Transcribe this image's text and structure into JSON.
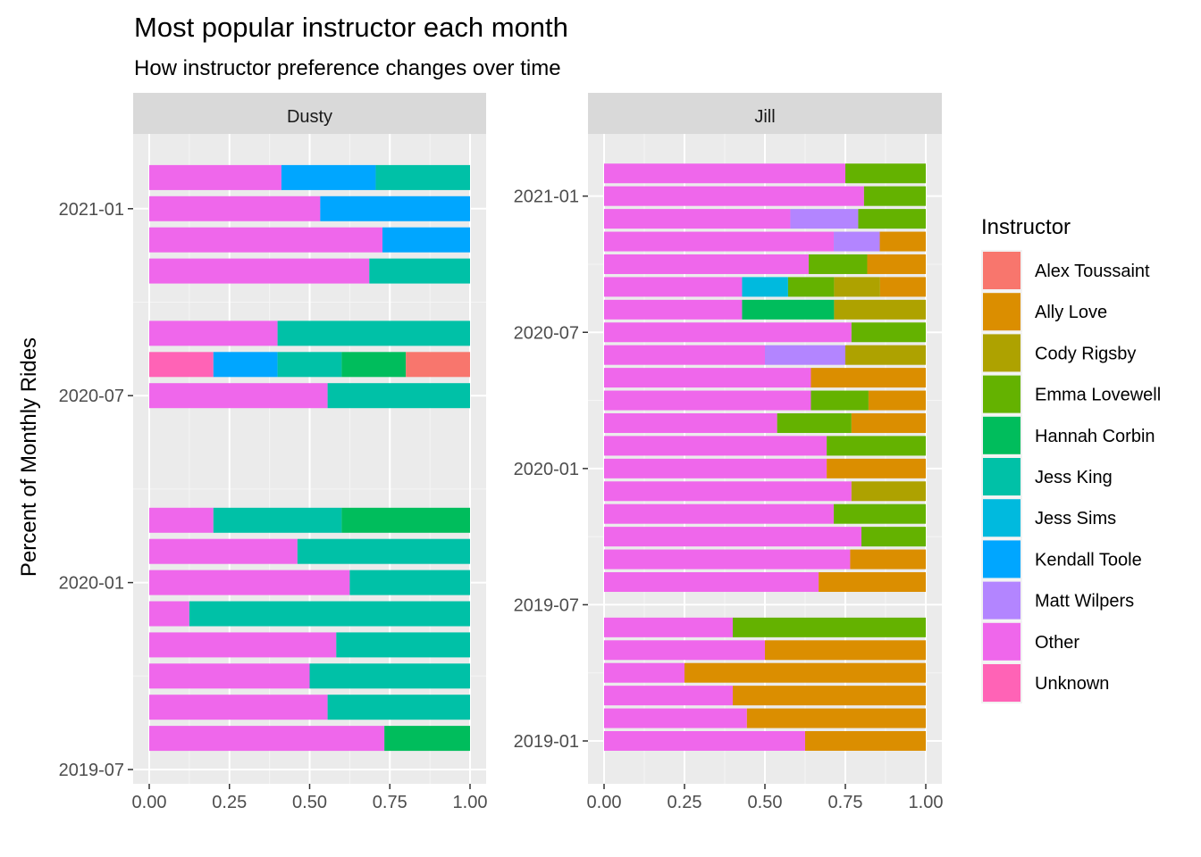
{
  "chart_data": {
    "type": "bar",
    "orientation": "horizontal",
    "stacked": true,
    "title": "Most popular instructor each month",
    "subtitle": "How instructor preference changes over time",
    "ylabel": "Percent of Monthly Rides",
    "xlim": [
      0,
      1
    ],
    "x_ticks": [
      "0.00",
      "0.25",
      "0.50",
      "0.75",
      "1.00"
    ],
    "legend": {
      "title": "Instructor",
      "position": "right",
      "entries": [
        {
          "name": "Alex Toussaint",
          "color": "#F8766D"
        },
        {
          "name": "Ally Love",
          "color": "#DB8E00"
        },
        {
          "name": "Cody Rigsby",
          "color": "#AEA200"
        },
        {
          "name": "Emma Lovewell",
          "color": "#64B200"
        },
        {
          "name": "Hannah Corbin",
          "color": "#00BD5C"
        },
        {
          "name": "Jess King",
          "color": "#00C1A7"
        },
        {
          "name": "Jess Sims",
          "color": "#00BADE"
        },
        {
          "name": "Kendall Toole",
          "color": "#00A6FF"
        },
        {
          "name": "Matt Wilpers",
          "color": "#B385FF"
        },
        {
          "name": "Other",
          "color": "#EF67EB"
        },
        {
          "name": "Unknown",
          "color": "#FF63B6"
        }
      ]
    },
    "panels": [
      {
        "strip": "Dusty",
        "y_ticks": [
          "2019-07",
          "2020-01",
          "2020-07",
          "2021-01"
        ],
        "bars": [
          {
            "month": "2019-08",
            "segments": [
              [
                "Other",
                0.733
              ],
              [
                "Hannah Corbin",
                0.267
              ]
            ]
          },
          {
            "month": "2019-09",
            "segments": [
              [
                "Other",
                0.556
              ],
              [
                "Jess King",
                0.444
              ]
            ]
          },
          {
            "month": "2019-10",
            "segments": [
              [
                "Other",
                0.5
              ],
              [
                "Jess King",
                0.5
              ]
            ]
          },
          {
            "month": "2019-11",
            "segments": [
              [
                "Other",
                0.583
              ],
              [
                "Jess King",
                0.417
              ]
            ]
          },
          {
            "month": "2019-12",
            "segments": [
              [
                "Other",
                0.125
              ],
              [
                "Jess King",
                0.875
              ]
            ]
          },
          {
            "month": "2020-01",
            "segments": [
              [
                "Other",
                0.625
              ],
              [
                "Jess King",
                0.375
              ]
            ]
          },
          {
            "month": "2020-02",
            "segments": [
              [
                "Other",
                0.462
              ],
              [
                "Jess King",
                0.538
              ]
            ]
          },
          {
            "month": "2020-03",
            "segments": [
              [
                "Other",
                0.2
              ],
              [
                "Jess King",
                0.4
              ],
              [
                "Hannah Corbin",
                0.4
              ]
            ]
          },
          {
            "month": "2020-07",
            "segments": [
              [
                "Other",
                0.556
              ],
              [
                "Jess King",
                0.444
              ]
            ]
          },
          {
            "month": "2020-08",
            "segments": [
              [
                "Unknown",
                0.2
              ],
              [
                "Kendall Toole",
                0.2
              ],
              [
                "Jess King",
                0.2
              ],
              [
                "Hannah Corbin",
                0.2
              ],
              [
                "Alex Toussaint",
                0.2
              ]
            ]
          },
          {
            "month": "2020-09",
            "segments": [
              [
                "Other",
                0.4
              ],
              [
                "Jess King",
                0.6
              ]
            ]
          },
          {
            "month": "2020-11",
            "segments": [
              [
                "Other",
                0.686
              ],
              [
                "Jess King",
                0.314
              ]
            ]
          },
          {
            "month": "2020-12",
            "segments": [
              [
                "Other",
                0.727
              ],
              [
                "Kendall Toole",
                0.273
              ]
            ]
          },
          {
            "month": "2021-01",
            "segments": [
              [
                "Other",
                0.533
              ],
              [
                "Kendall Toole",
                0.467
              ]
            ]
          },
          {
            "month": "2021-02",
            "segments": [
              [
                "Other",
                0.412
              ],
              [
                "Kendall Toole",
                0.294
              ],
              [
                "Jess King",
                0.294
              ]
            ]
          }
        ]
      },
      {
        "strip": "Jill",
        "y_ticks": [
          "2019-01",
          "2019-07",
          "2020-01",
          "2020-07",
          "2021-01"
        ],
        "bars": [
          {
            "month": "2019-01",
            "segments": [
              [
                "Other",
                0.625
              ],
              [
                "Ally Love",
                0.375
              ]
            ]
          },
          {
            "month": "2019-02",
            "segments": [
              [
                "Other",
                0.444
              ],
              [
                "Ally Love",
                0.556
              ]
            ]
          },
          {
            "month": "2019-03",
            "segments": [
              [
                "Other",
                0.4
              ],
              [
                "Ally Love",
                0.6
              ]
            ]
          },
          {
            "month": "2019-04",
            "segments": [
              [
                "Other",
                0.25
              ],
              [
                "Ally Love",
                0.75
              ]
            ]
          },
          {
            "month": "2019-05",
            "segments": [
              [
                "Other",
                0.5
              ],
              [
                "Ally Love",
                0.5
              ]
            ]
          },
          {
            "month": "2019-06",
            "segments": [
              [
                "Other",
                0.4
              ],
              [
                "Emma Lovewell",
                0.6
              ]
            ]
          },
          {
            "month": "2019-08",
            "segments": [
              [
                "Other",
                0.667
              ],
              [
                "Ally Love",
                0.333
              ]
            ]
          },
          {
            "month": "2019-09",
            "segments": [
              [
                "Other",
                0.765
              ],
              [
                "Ally Love",
                0.235
              ]
            ]
          },
          {
            "month": "2019-10",
            "segments": [
              [
                "Other",
                0.8
              ],
              [
                "Emma Lovewell",
                0.2
              ]
            ]
          },
          {
            "month": "2019-11",
            "segments": [
              [
                "Other",
                0.714
              ],
              [
                "Emma Lovewell",
                0.286
              ]
            ]
          },
          {
            "month": "2019-12",
            "segments": [
              [
                "Other",
                0.769
              ],
              [
                "Cody Rigsby",
                0.231
              ]
            ]
          },
          {
            "month": "2020-01",
            "segments": [
              [
                "Other",
                0.692
              ],
              [
                "Ally Love",
                0.308
              ]
            ]
          },
          {
            "month": "2020-02",
            "segments": [
              [
                "Other",
                0.692
              ],
              [
                "Emma Lovewell",
                0.308
              ]
            ]
          },
          {
            "month": "2020-03",
            "segments": [
              [
                "Other",
                0.538
              ],
              [
                "Emma Lovewell",
                0.231
              ],
              [
                "Ally Love",
                0.231
              ]
            ]
          },
          {
            "month": "2020-04",
            "segments": [
              [
                "Other",
                0.643
              ],
              [
                "Emma Lovewell",
                0.179
              ],
              [
                "Ally Love",
                0.178
              ]
            ]
          },
          {
            "month": "2020-05",
            "segments": [
              [
                "Other",
                0.643
              ],
              [
                "Ally Love",
                0.357
              ]
            ]
          },
          {
            "month": "2020-06",
            "segments": [
              [
                "Other",
                0.5
              ],
              [
                "Matt Wilpers",
                0.25
              ],
              [
                "Cody Rigsby",
                0.25
              ]
            ]
          },
          {
            "month": "2020-07",
            "segments": [
              [
                "Other",
                0.769
              ],
              [
                "Emma Lovewell",
                0.231
              ]
            ]
          },
          {
            "month": "2020-08",
            "segments": [
              [
                "Other",
                0.429
              ],
              [
                "Hannah Corbin",
                0.286
              ],
              [
                "Cody Rigsby",
                0.285
              ]
            ]
          },
          {
            "month": "2020-09",
            "segments": [
              [
                "Other",
                0.429
              ],
              [
                "Jess Sims",
                0.143
              ],
              [
                "Emma Lovewell",
                0.143
              ],
              [
                "Cody Rigsby",
                0.143
              ],
              [
                "Ally Love",
                0.142
              ]
            ]
          },
          {
            "month": "2020-10",
            "segments": [
              [
                "Other",
                0.636
              ],
              [
                "Emma Lovewell",
                0.182
              ],
              [
                "Ally Love",
                0.182
              ]
            ]
          },
          {
            "month": "2020-11",
            "segments": [
              [
                "Other",
                0.714
              ],
              [
                "Matt Wilpers",
                0.143
              ],
              [
                "Ally Love",
                0.143
              ]
            ]
          },
          {
            "month": "2020-12",
            "segments": [
              [
                "Other",
                0.579
              ],
              [
                "Matt Wilpers",
                0.211
              ],
              [
                "Emma Lovewell",
                0.21
              ]
            ]
          },
          {
            "month": "2021-01",
            "segments": [
              [
                "Other",
                0.808
              ],
              [
                "Emma Lovewell",
                0.192
              ]
            ]
          },
          {
            "month": "2021-02",
            "segments": [
              [
                "Other",
                0.75
              ],
              [
                "Emma Lovewell",
                0.25
              ]
            ]
          }
        ]
      }
    ]
  }
}
